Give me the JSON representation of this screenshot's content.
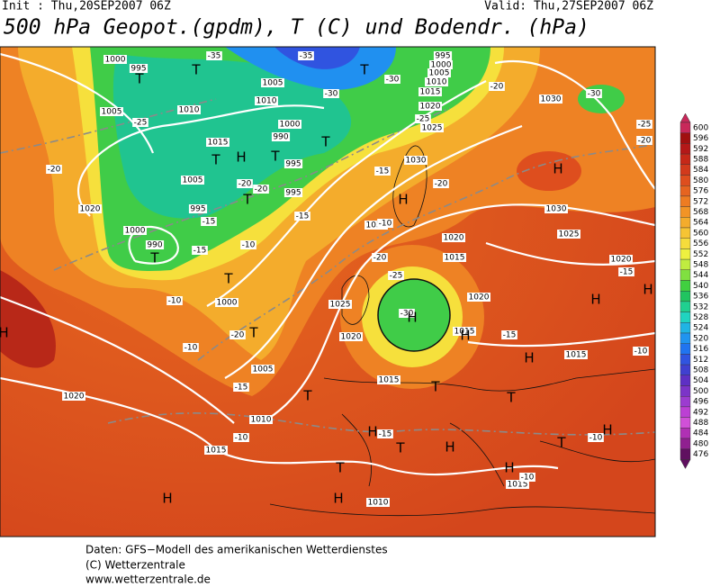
{
  "header": {
    "init": "Init : Thu,20SEP2007 06Z",
    "valid": "Valid: Thu,27SEP2007 06Z",
    "title": "500 hPa Geopot.(gpdm), T (C) und Bodendr. (hPa)"
  },
  "map": {
    "isobar_labels": [
      "1000",
      "995",
      "1005",
      "1010",
      "1005",
      "1010",
      "1000",
      "990",
      "995",
      "1015",
      "1005",
      "995",
      "995",
      "1000",
      "990",
      "1020",
      "1000",
      "995",
      "1000",
      "1005",
      "1010",
      "1015",
      "1020",
      "1025",
      "1030",
      "1030",
      "1020",
      "1015",
      "1025",
      "1020",
      "1005",
      "1015",
      "1010",
      "1015",
      "1020",
      "1010",
      "1030",
      "1030",
      "1025",
      "1020",
      "1015",
      "1015",
      "1015",
      "1020"
    ],
    "temperature_labels": [
      "-35",
      "-35",
      "-30",
      "-25",
      "-30",
      "-25",
      "-20",
      "-20",
      "-15",
      "-15",
      "-15",
      "-15",
      "-20",
      "-20",
      "-20",
      "-10",
      "-10",
      "-20",
      "-10",
      "-15",
      "-10",
      "-20",
      "-25",
      "-30",
      "-15",
      "-15",
      "-10",
      "-15",
      "-10",
      "-10",
      "-10",
      "-25",
      "-20",
      "-30"
    ],
    "systems": [
      "T",
      "T",
      "T",
      "T",
      "H",
      "T",
      "T",
      "T",
      "T",
      "T",
      "T",
      "H",
      "H",
      "H",
      "H",
      "H",
      "H",
      "T",
      "T",
      "T",
      "H",
      "T",
      "H",
      "T",
      "T",
      "H",
      "H",
      "H",
      "H",
      "H",
      "H"
    ]
  },
  "colorbar": {
    "labels": [
      600,
      596,
      592,
      588,
      584,
      580,
      576,
      572,
      568,
      564,
      560,
      556,
      552,
      548,
      544,
      540,
      536,
      532,
      528,
      524,
      520,
      516,
      512,
      508,
      504,
      500,
      496,
      492,
      488,
      484,
      480,
      476
    ],
    "colors": [
      "#c8285a",
      "#a01010",
      "#b41818",
      "#c62818",
      "#d23a1c",
      "#de4e1e",
      "#e66420",
      "#ee7c22",
      "#f29426",
      "#f4ac2c",
      "#f6c434",
      "#f6dc3c",
      "#eef040",
      "#c0ec40",
      "#80e040",
      "#40d040",
      "#20c460",
      "#20d090",
      "#20d4c0",
      "#20b4e4",
      "#2094f0",
      "#2074f0",
      "#3054e0",
      "#4040d0",
      "#5e30c4",
      "#7c34c8",
      "#9c3cd0",
      "#bc40d4",
      "#d050d8",
      "#b030b4",
      "#902090",
      "#601060"
    ]
  },
  "footer": {
    "source": "Daten: GFS−Modell des amerikanischen Wetterdienstes",
    "copyright": "(C) Wetterzentrale",
    "url": "www.wetterzentrale.de"
  }
}
